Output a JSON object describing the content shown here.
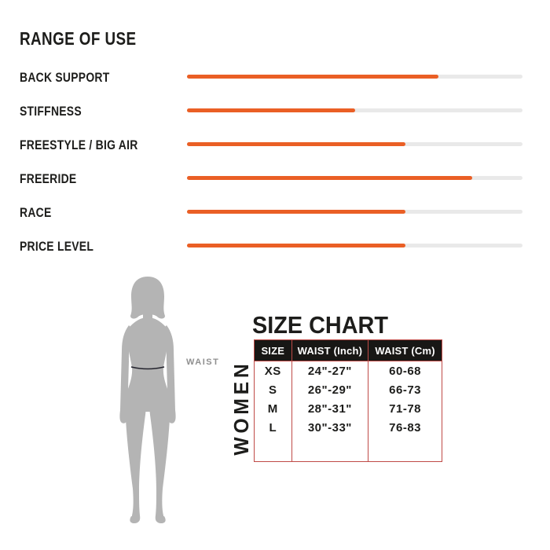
{
  "colors": {
    "accent_orange": "#ea5f25",
    "bar_track_gray": "#e9e9e9",
    "table_border_red": "#bf4a46",
    "table_header_bg": "#181715",
    "silhouette_gray": "#b4b4b4",
    "waist_line_dark": "#23232d",
    "waist_label_gray": "#8f8f8f",
    "text_black": "#1d1d1b"
  },
  "range_of_use": {
    "title": "RANGE OF USE",
    "rows": [
      {
        "label": "BACK SUPPORT",
        "value": 75
      },
      {
        "label": "STIFFNESS",
        "value": 50
      },
      {
        "label": "FREESTYLE / BIG AIR",
        "value": 65
      },
      {
        "label": "FREERIDE",
        "value": 85
      },
      {
        "label": "RACE",
        "value": 65
      },
      {
        "label": "PRICE LEVEL",
        "value": 65
      }
    ]
  },
  "size_chart": {
    "title": "SIZE CHART",
    "gender_label": "WOMEN",
    "waist_label": "WAIST",
    "columns": [
      "SIZE",
      "WAIST (Inch)",
      "WAIST (Cm)"
    ],
    "rows": [
      {
        "size": "XS",
        "inch": "24\"-27\"",
        "cm": "60-68"
      },
      {
        "size": "S",
        "inch": "26\"-29\"",
        "cm": "66-73"
      },
      {
        "size": "M",
        "inch": "28\"-31\"",
        "cm": "71-78"
      },
      {
        "size": "L",
        "inch": "30\"-33\"",
        "cm": "76-83"
      }
    ]
  },
  "chart_data": [
    {
      "type": "bar",
      "orientation": "horizontal",
      "title": "RANGE OF USE",
      "categories": [
        "BACK SUPPORT",
        "STIFFNESS",
        "FREESTYLE / BIG AIR",
        "FREERIDE",
        "RACE",
        "PRICE LEVEL"
      ],
      "values": [
        75,
        50,
        65,
        85,
        65,
        65
      ],
      "xlabel": "",
      "ylabel": "",
      "xlim": [
        0,
        100
      ],
      "grid": false,
      "legend": "none",
      "bar_color": "#ea5f25",
      "track_color": "#e9e9e9"
    },
    {
      "type": "table",
      "title": "SIZE CHART",
      "columns": [
        "SIZE",
        "WAIST (Inch)",
        "WAIST (Cm)"
      ],
      "rows": [
        [
          "XS",
          "24\"-27\"",
          "60-68"
        ],
        [
          "S",
          "26\"-29\"",
          "66-73"
        ],
        [
          "M",
          "28\"-31\"",
          "71-78"
        ],
        [
          "L",
          "30\"-33\"",
          "76-83"
        ]
      ]
    }
  ]
}
